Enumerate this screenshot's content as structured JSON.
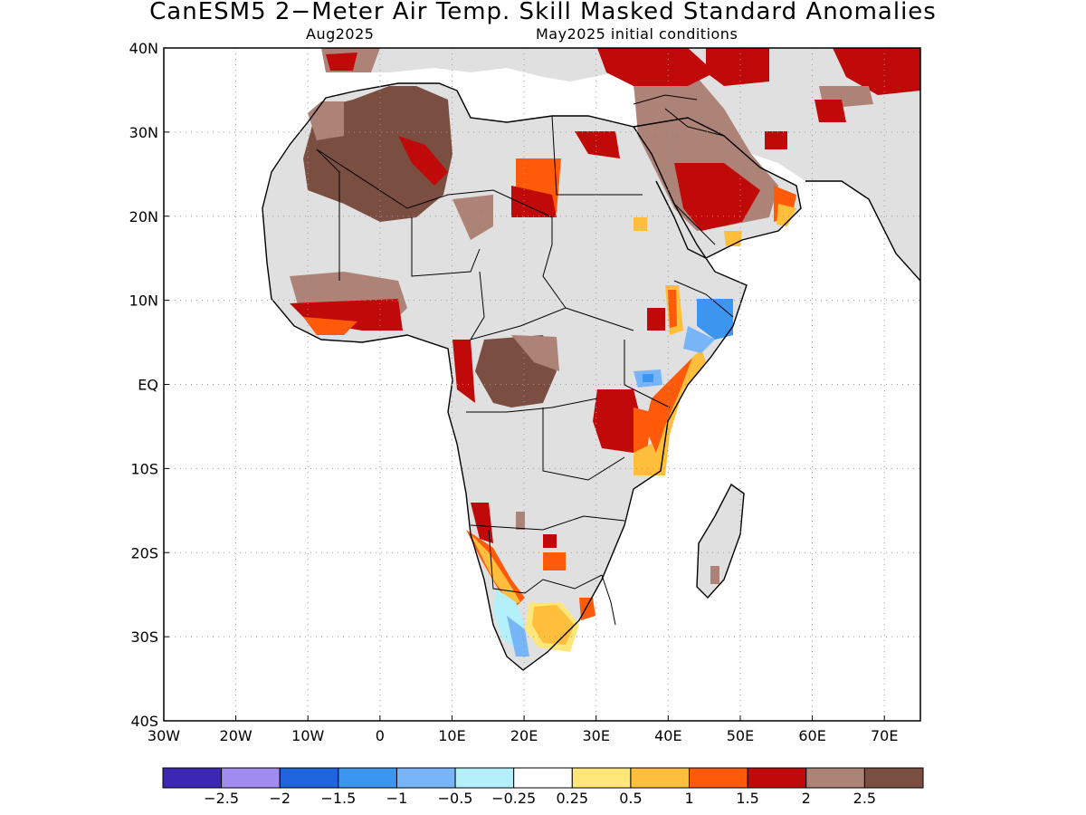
{
  "title": "CanESM5 2−Meter Air Temp. Skill Masked Standard Anomalies",
  "subtitle_left": "Aug2025",
  "subtitle_right": "May2025 initial conditions",
  "map": {
    "lon_ticks": [
      "30W",
      "20W",
      "10W",
      "0",
      "10E",
      "20E",
      "30E",
      "40E",
      "50E",
      "60E",
      "70E"
    ],
    "lat_ticks": [
      "40N",
      "30N",
      "20N",
      "10N",
      "EQ",
      "10S",
      "20S",
      "30S",
      "40S"
    ],
    "lon_range": [
      -30,
      75
    ],
    "lat_range": [
      -40,
      40
    ],
    "land_color": "#e0e0e0",
    "grid": "dotted"
  },
  "colorbar": {
    "colors": [
      "#3c27b4",
      "#a08cf0",
      "#1e64dc",
      "#3c96f0",
      "#78b4f8",
      "#b4f0fa",
      "#ffffff",
      "#ffe678",
      "#ffbe3c",
      "#ff5a0a",
      "#c00a0a",
      "#ad8377",
      "#7a4e40"
    ],
    "labels": [
      "−2.5",
      "−2",
      "−1.5",
      "−1",
      "−0.5",
      "−0.25",
      "0.25",
      "0.5",
      "1",
      "1.5",
      "2",
      "2.5"
    ]
  }
}
